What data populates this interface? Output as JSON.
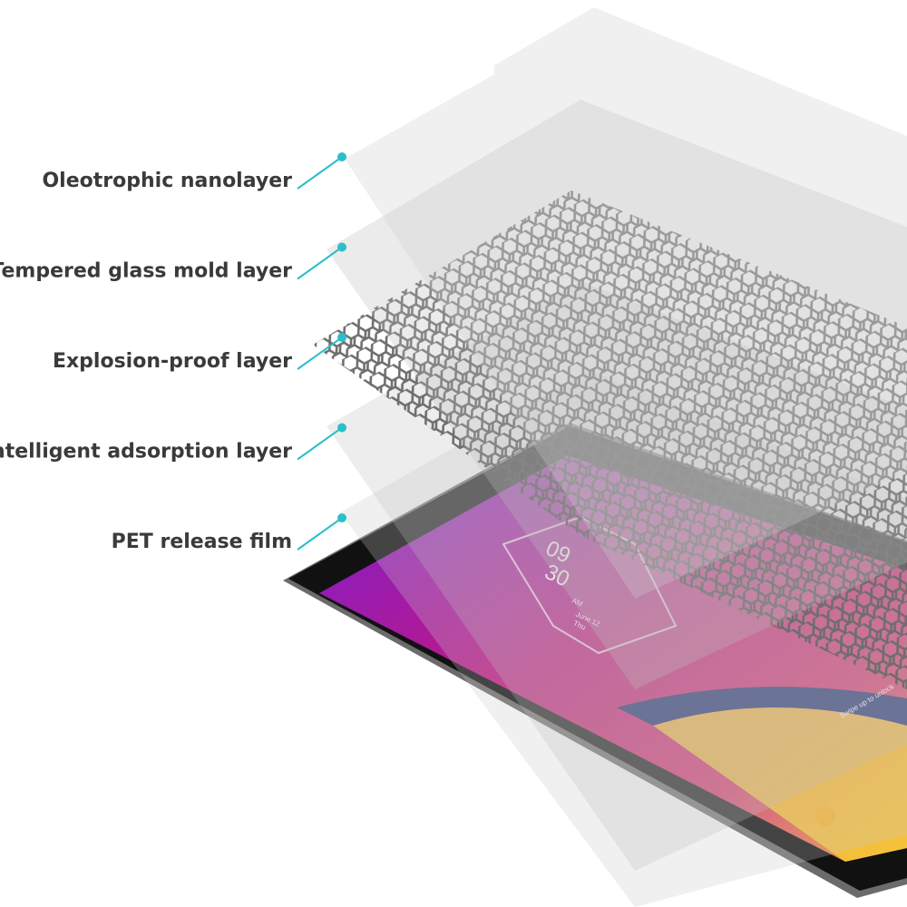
{
  "layers": [
    {
      "label": "Oleotrophic nanolayer"
    },
    {
      "label": "Tempered glass mold layer"
    },
    {
      "label": "Explosion-proof layer"
    },
    {
      "label": "Intelligent adsorption layer"
    },
    {
      "label": "PET release film"
    }
  ],
  "screen": {
    "hour": "09",
    "minute": "30",
    "ampm": "AM",
    "date": "June 12",
    "day": "Thu",
    "unlock": "Swipe up to unlock"
  }
}
